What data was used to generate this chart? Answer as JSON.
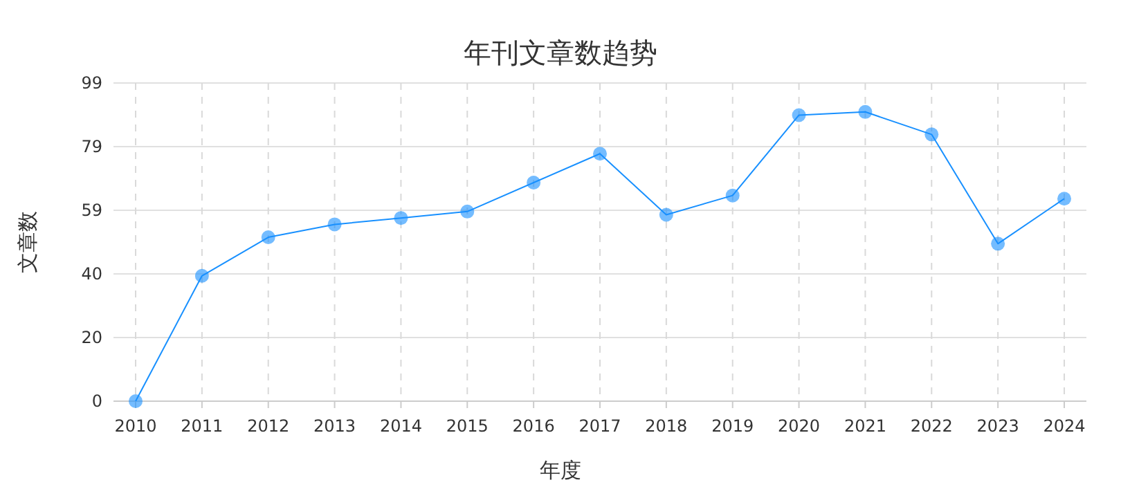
{
  "chart_data": {
    "type": "line",
    "title": "年刊文章数趋势",
    "xlabel": "年度",
    "ylabel": "文章数",
    "categories": [
      "2010",
      "2011",
      "2012",
      "2013",
      "2014",
      "2015",
      "2016",
      "2017",
      "2018",
      "2019",
      "2020",
      "2021",
      "2022",
      "2023",
      "2024"
    ],
    "series": [
      {
        "color": "#1890ff",
        "values": [
          0,
          39,
          51,
          55,
          57,
          59,
          68,
          77,
          58,
          64,
          89,
          90,
          83,
          49,
          63
        ]
      }
    ],
    "ylim": [
      0,
      99
    ],
    "yticks": [
      0,
      {
        "value": 19.8,
        "label": "20"
      },
      {
        "value": 39.6,
        "label": "40"
      },
      {
        "value": 59.4,
        "label": "59"
      },
      {
        "value": 79.2,
        "label": "79"
      },
      99
    ],
    "grid": true,
    "marker": "circle",
    "line_style": "solid"
  }
}
